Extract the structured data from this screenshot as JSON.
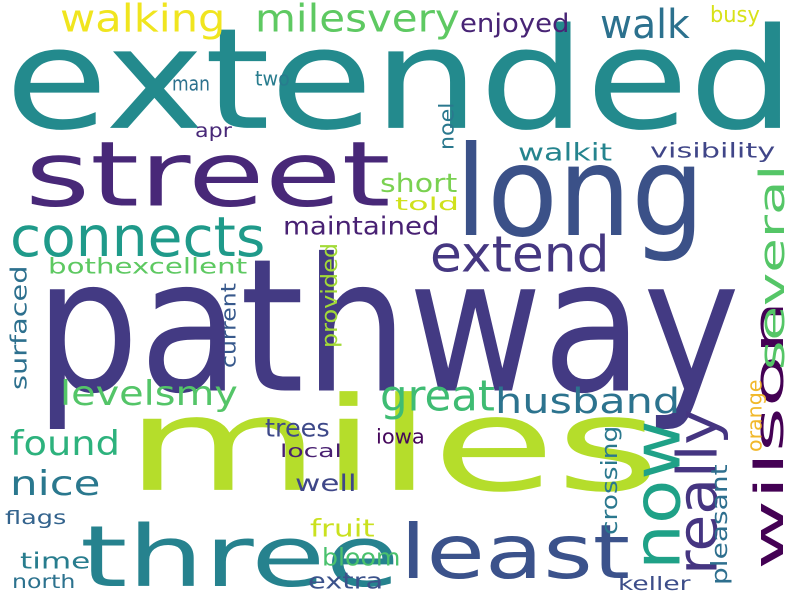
{
  "words": [
    {
      "text": "extended",
      "color": "#238a8d"
    },
    {
      "text": "pathway",
      "color": "#433a83"
    },
    {
      "text": "miles",
      "color": "#b5dd2b"
    },
    {
      "text": "street",
      "color": "#482878"
    },
    {
      "text": "long",
      "color": "#3b5188"
    },
    {
      "text": "three",
      "color": "#26828e"
    },
    {
      "text": "least",
      "color": "#3b528b"
    },
    {
      "text": "now",
      "color": "#1fa187"
    },
    {
      "text": "wilson",
      "color": "#440154"
    },
    {
      "text": "connects",
      "color": "#1f9a8a"
    },
    {
      "text": "extend",
      "color": "#453781"
    },
    {
      "text": "several",
      "color": "#55c667"
    },
    {
      "text": "walking",
      "color": "#f0e51f"
    },
    {
      "text": "milesvery",
      "color": "#5ec962"
    },
    {
      "text": "walk",
      "color": "#2c718e"
    },
    {
      "text": "enjoyed",
      "color": "#482475"
    },
    {
      "text": "busy",
      "color": "#d8e219"
    },
    {
      "text": "great",
      "color": "#3fbc73"
    },
    {
      "text": "husband",
      "color": "#2c738e"
    },
    {
      "text": "levelsmy",
      "color": "#54c568"
    },
    {
      "text": "found",
      "color": "#2db27d"
    },
    {
      "text": "nice",
      "color": "#2a788e"
    },
    {
      "text": "really",
      "color": "#453581"
    },
    {
      "text": "maintained",
      "color": "#482173"
    },
    {
      "text": "short",
      "color": "#7ad151"
    },
    {
      "text": "told",
      "color": "#d0e11c"
    },
    {
      "text": "walkit",
      "color": "#25848e"
    },
    {
      "text": "visibility",
      "color": "#404688"
    },
    {
      "text": "bothexcellent",
      "color": "#5ec962"
    },
    {
      "text": "surfaced",
      "color": "#2d708e"
    },
    {
      "text": "provided",
      "color": "#a2da37"
    },
    {
      "text": "current",
      "color": "#38598c"
    },
    {
      "text": "trees",
      "color": "#3e4989"
    },
    {
      "text": "local",
      "color": "#481f71"
    },
    {
      "text": "iowa",
      "color": "#46085c"
    },
    {
      "text": "well",
      "color": "#3f4788"
    },
    {
      "text": "fruit",
      "color": "#cae11f"
    },
    {
      "text": "bloom",
      "color": "#4ac16d"
    },
    {
      "text": "extra",
      "color": "#3b528b"
    },
    {
      "text": "time",
      "color": "#287d8e"
    },
    {
      "text": "north",
      "color": "#2c728e"
    },
    {
      "text": "flags",
      "color": "#33638d"
    },
    {
      "text": "keller",
      "color": "#3d4e8a"
    },
    {
      "text": "pleasant",
      "color": "#2e6f8e"
    },
    {
      "text": "crossing",
      "color": "#2a788e"
    },
    {
      "text": "orange",
      "color": "#f1b82b"
    },
    {
      "text": "noel",
      "color": "#2a788e"
    },
    {
      "text": "man",
      "color": "#2c718e"
    },
    {
      "text": "two",
      "color": "#287c8e"
    },
    {
      "text": "apr",
      "color": "#482878"
    }
  ]
}
